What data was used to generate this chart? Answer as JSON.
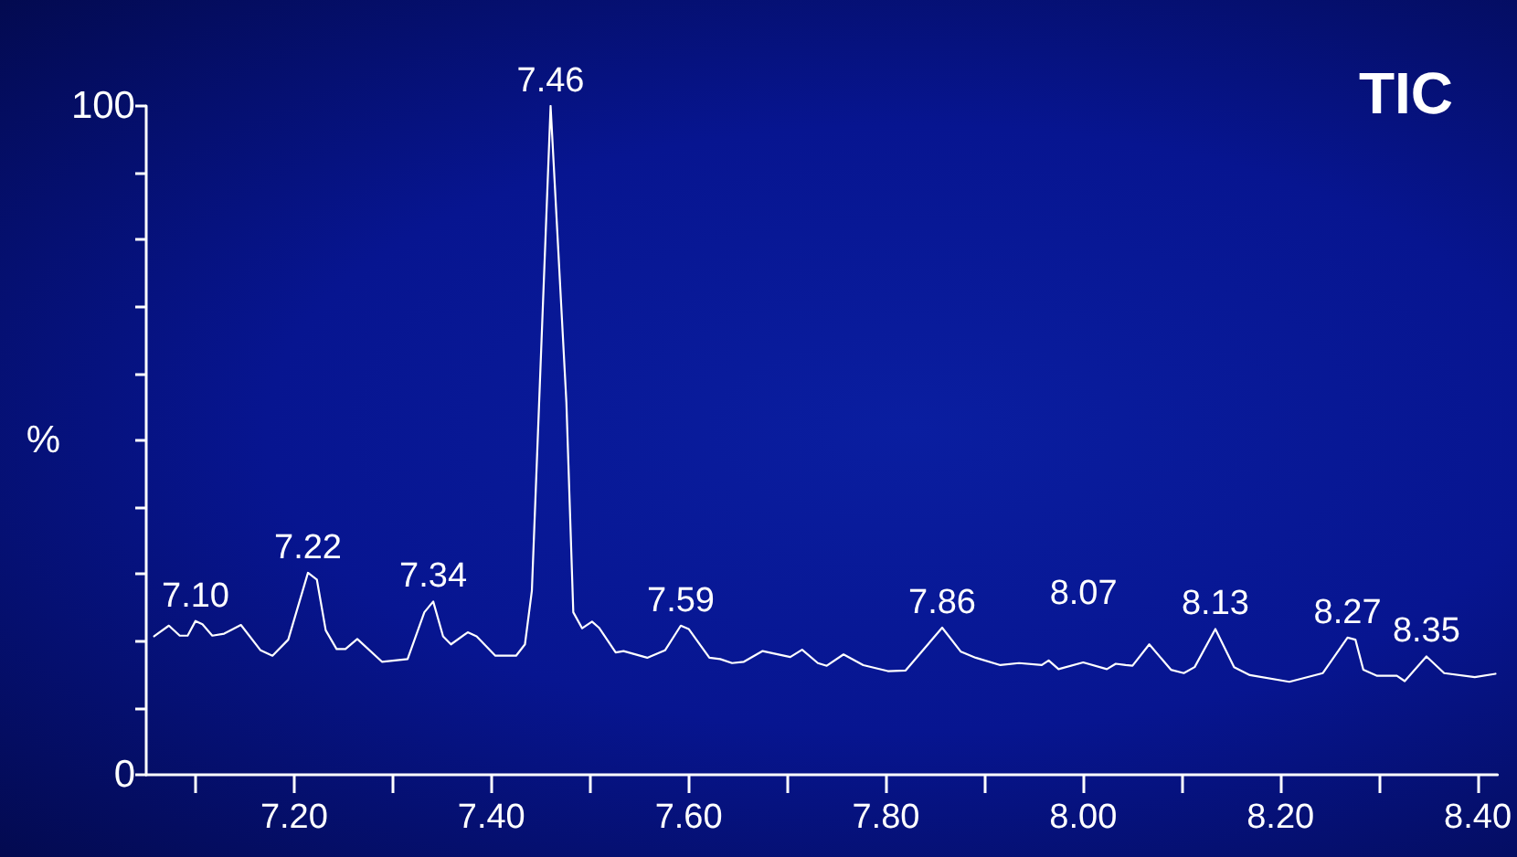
{
  "chart_data": {
    "type": "line",
    "title": "TIC",
    "ylabel": "%",
    "x": [
      7.058,
      7.073,
      7.084,
      7.092,
      7.1,
      7.107,
      7.117,
      7.129,
      7.146,
      7.166,
      7.178,
      7.194,
      7.214,
      7.223,
      7.232,
      7.243,
      7.252,
      7.264,
      7.289,
      7.315,
      7.332,
      7.341,
      7.351,
      7.359,
      7.376,
      7.385,
      7.404,
      7.425,
      7.434,
      7.441,
      7.46,
      7.476,
      7.483,
      7.492,
      7.502,
      7.509,
      7.526,
      7.534,
      7.558,
      7.576,
      7.592,
      7.6,
      7.621,
      7.632,
      7.644,
      7.656,
      7.675,
      7.703,
      7.715,
      7.731,
      7.74,
      7.757,
      7.777,
      7.802,
      7.82,
      7.857,
      7.876,
      7.891,
      7.916,
      7.935,
      7.958,
      7.965,
      7.975,
      8.0,
      8.024,
      8.033,
      8.043,
      8.05,
      8.067,
      8.089,
      8.102,
      8.113,
      8.134,
      8.153,
      8.169,
      8.209,
      8.243,
      8.268,
      8.276,
      8.284,
      8.298,
      8.318,
      8.326,
      8.348,
      8.366,
      8.397,
      8.418
    ],
    "series": [
      {
        "color": "#ffffff",
        "values": [
          20.7,
          22.3,
          20.8,
          20.8,
          23.0,
          22.5,
          20.8,
          21.1,
          22.4,
          18.6,
          17.8,
          20.2,
          30.2,
          29.2,
          21.6,
          18.8,
          18.8,
          20.3,
          16.9,
          17.3,
          24.3,
          25.9,
          20.7,
          19.5,
          21.3,
          20.7,
          17.8,
          17.8,
          19.5,
          27.5,
          100,
          55.7,
          24.3,
          21.9,
          22.9,
          22.0,
          18.3,
          18.5,
          17.5,
          18.6,
          22.3,
          21.8,
          17.5,
          17.3,
          16.7,
          16.9,
          18.5,
          17.6,
          18.7,
          16.7,
          16.3,
          18.0,
          16.4,
          15.5,
          15.6,
          22.0,
          18.4,
          17.5,
          16.4,
          16.7,
          16.4,
          17.1,
          15.8,
          16.8,
          15.8,
          16.6,
          16.4,
          16.3,
          19.5,
          15.7,
          15.2,
          16.1,
          21.8,
          16.1,
          14.9,
          13.9,
          15.2,
          20.5,
          20.2,
          15.7,
          14.8,
          14.8,
          14.0,
          17.7,
          15.2,
          14.6,
          15.1
        ]
      }
    ],
    "xlim": [
      7.05,
      8.42
    ],
    "xticks": [
      {
        "value": 7.1,
        "label": null
      },
      {
        "value": 7.2,
        "label": "7.20"
      },
      {
        "value": 7.3,
        "label": null
      },
      {
        "value": 7.4,
        "label": "7.40"
      },
      {
        "value": 7.5,
        "label": null
      },
      {
        "value": 7.6,
        "label": "7.60"
      },
      {
        "value": 7.7,
        "label": null
      },
      {
        "value": 7.8,
        "label": "7.80"
      },
      {
        "value": 7.9,
        "label": null
      },
      {
        "value": 8.0,
        "label": "8.00"
      },
      {
        "value": 8.1,
        "label": null
      },
      {
        "value": 8.2,
        "label": "8.20"
      },
      {
        "value": 8.3,
        "label": null
      },
      {
        "value": 8.4,
        "label": "8.40"
      }
    ],
    "ylim": [
      0,
      100
    ],
    "yticks": [
      0,
      {
        "value": 10,
        "label": null
      },
      {
        "value": 20,
        "label": null
      },
      {
        "value": 30,
        "label": null
      },
      {
        "value": 40,
        "label": null
      },
      {
        "value": 50,
        "label": null
      },
      {
        "value": 60,
        "label": null
      },
      {
        "value": 70,
        "label": null
      },
      {
        "value": 80,
        "label": null
      },
      {
        "value": 90,
        "label": null
      },
      100
    ],
    "annotations": [
      {
        "text": "7.10",
        "x": 7.1,
        "y": 23.0
      },
      {
        "text": "7.22",
        "x": 7.214,
        "y": 30.2
      },
      {
        "text": "7.34",
        "x": 7.341,
        "y": 25.9
      },
      {
        "text": "7.46",
        "x": 7.46,
        "y": 100
      },
      {
        "text": "7.59",
        "x": 7.592,
        "y": 22.3
      },
      {
        "text": "7.86",
        "x": 7.857,
        "y": 22.0
      },
      {
        "text": "8.07",
        "x": 8.067,
        "y": 19.5
      },
      {
        "text": "8.13",
        "x": 8.134,
        "y": 21.8
      },
      {
        "text": "8.27",
        "x": 8.268,
        "y": 20.5
      },
      {
        "text": "8.35",
        "x": 8.348,
        "y": 17.7
      }
    ],
    "grid": false,
    "marker": "none",
    "line_style": "solid"
  }
}
